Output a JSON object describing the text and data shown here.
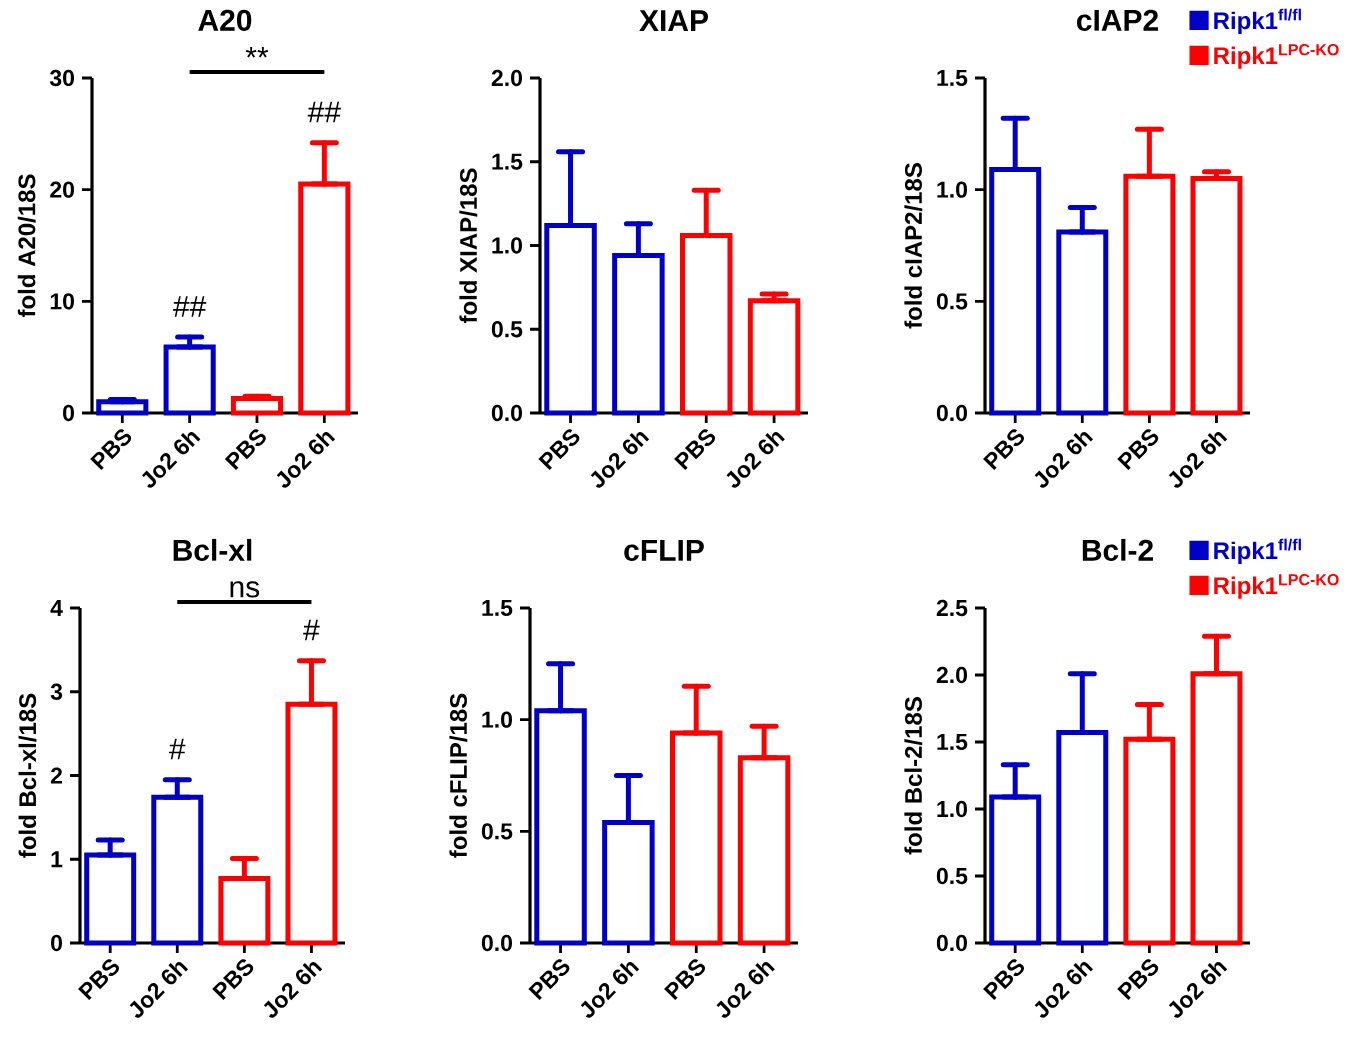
{
  "chart_data": [
    {
      "type": "bar",
      "title": "A20",
      "ylabel": "fold A20/18S",
      "categories": [
        "PBS",
        "Jo2 6h",
        "PBS",
        "Jo2 6h"
      ],
      "ylim": [
        0,
        30
      ],
      "yticks": [
        0,
        10,
        20,
        30
      ],
      "series": [
        {
          "color": "#0000c8",
          "values": [
            1.0,
            5.9,
            null,
            null
          ],
          "errors": [
            [
              1.0,
              1.2
            ],
            [
              5.9,
              6.8
            ],
            null,
            null
          ]
        },
        {
          "color": "#ff0000",
          "values": [
            null,
            null,
            1.3,
            20.5
          ],
          "errors": [
            null,
            null,
            [
              1.3,
              1.5
            ],
            [
              20.5,
              24.2
            ]
          ]
        }
      ],
      "annotations": [
        "##",
        "##",
        "**"
      ]
    },
    {
      "type": "bar",
      "title": "XIAP",
      "ylabel": "fold XIAP/18S",
      "categories": [
        "PBS",
        "Jo2 6h",
        "PBS",
        "Jo2 6h"
      ],
      "ylim": [
        0,
        2
      ],
      "yticks": [
        {
          "value": 0,
          "label": "0.0"
        },
        {
          "value": 0.5,
          "label": "0.5"
        },
        {
          "value": 1,
          "label": "1.0"
        },
        {
          "value": 1.5,
          "label": "1.5"
        },
        {
          "value": 2,
          "label": "2.0"
        }
      ],
      "series": [
        {
          "color": "#0000c8",
          "values": [
            1.12,
            0.94,
            null,
            null
          ],
          "errors": [
            [
              1.12,
              1.56
            ],
            [
              0.94,
              1.13
            ],
            null,
            null
          ]
        },
        {
          "color": "#ff0000",
          "values": [
            null,
            null,
            1.06,
            0.67
          ],
          "errors": [
            null,
            null,
            [
              1.06,
              1.33
            ],
            [
              0.67,
              0.71
            ]
          ]
        }
      ]
    },
    {
      "type": "bar",
      "title": "cIAP2",
      "ylabel": "fold cIAP2/18S",
      "categories": [
        "PBS",
        "Jo2 6h",
        "PBS",
        "Jo2 6h"
      ],
      "ylim": [
        0,
        1.5
      ],
      "yticks": [
        {
          "value": 0,
          "label": "0.0"
        },
        {
          "value": 0.5,
          "label": "0.5"
        },
        {
          "value": 1,
          "label": "1.0"
        },
        {
          "value": 1.5,
          "label": "1.5"
        }
      ],
      "legend": "top right",
      "series": [
        {
          "name": "Ripk1$^{fl/fl}$",
          "color": "#0000c8",
          "values": [
            1.09,
            0.81,
            null,
            null
          ],
          "errors": [
            [
              1.09,
              1.32
            ],
            [
              0.81,
              0.92
            ],
            null,
            null
          ]
        },
        {
          "name": "Ripk1$^{LPC-KO}$",
          "color": "#ff0000",
          "values": [
            null,
            null,
            1.06,
            1.05
          ],
          "errors": [
            null,
            null,
            [
              1.06,
              1.27
            ],
            [
              1.05,
              1.08
            ]
          ]
        }
      ]
    },
    {
      "type": "bar",
      "title": "Bcl-xl",
      "ylabel": "fold Bcl-xl/18S",
      "categories": [
        "PBS",
        "Jo2 6h",
        "PBS",
        "Jo2 6h"
      ],
      "ylim": [
        0,
        4
      ],
      "yticks": [
        0,
        1,
        2,
        3,
        4
      ],
      "series": [
        {
          "color": "#0000c8",
          "values": [
            1.05,
            1.74,
            null,
            null
          ],
          "errors": [
            [
              1.05,
              1.23
            ],
            [
              1.74,
              1.95
            ],
            null,
            null
          ]
        },
        {
          "color": "#ff0000",
          "values": [
            null,
            null,
            0.77,
            2.85
          ],
          "errors": [
            null,
            null,
            [
              0.77,
              1.01
            ],
            [
              2.85,
              3.37
            ]
          ]
        }
      ],
      "annotations": [
        "#",
        "#",
        "ns"
      ]
    },
    {
      "type": "bar",
      "title": "cFLIP",
      "ylabel": "fold cFLIP/18S",
      "categories": [
        "PBS",
        "Jo2 6h",
        "PBS",
        "Jo2 6h"
      ],
      "ylim": [
        0,
        1.5
      ],
      "yticks": [
        {
          "value": 0,
          "label": "0.0"
        },
        {
          "value": 0.5,
          "label": "0.5"
        },
        {
          "value": 1,
          "label": "1.0"
        },
        {
          "value": 1.5,
          "label": "1.5"
        }
      ],
      "series": [
        {
          "color": "#0000c8",
          "values": [
            1.04,
            0.54,
            null,
            null
          ],
          "errors": [
            [
              1.04,
              1.25
            ],
            [
              0.54,
              0.75
            ],
            null,
            null
          ]
        },
        {
          "color": "#ff0000",
          "values": [
            null,
            null,
            0.94,
            0.83
          ],
          "errors": [
            null,
            null,
            [
              0.94,
              1.15
            ],
            [
              0.83,
              0.97
            ]
          ]
        }
      ]
    },
    {
      "type": "bar",
      "title": "Bcl-2",
      "ylabel": "fold Bcl-2/18S",
      "categories": [
        "PBS",
        "Jo2 6h",
        "PBS",
        "Jo2 6h"
      ],
      "ylim": [
        0,
        2.5
      ],
      "yticks": [
        {
          "value": 0,
          "label": "0.0"
        },
        {
          "value": 0.5,
          "label": "0.5"
        },
        {
          "value": 1,
          "label": "1.0"
        },
        {
          "value": 1.5,
          "label": "1.5"
        },
        {
          "value": 2,
          "label": "2.0"
        },
        {
          "value": 2.5,
          "label": "2.5"
        }
      ],
      "legend": "top right",
      "series": [
        {
          "name": "Ripk1$^{fl/fl}$",
          "color": "#0000c8",
          "values": [
            1.09,
            1.57,
            null,
            null
          ],
          "errors": [
            [
              1.09,
              1.33
            ],
            [
              1.57,
              2.01
            ],
            null,
            null
          ]
        },
        {
          "name": "Ripk1$^{LPC-KO}$",
          "color": "#ff0000",
          "values": [
            null,
            null,
            1.52,
            2.01
          ],
          "errors": [
            null,
            null,
            [
              1.52,
              1.78
            ],
            [
              2.01,
              2.29
            ]
          ]
        }
      ]
    }
  ]
}
